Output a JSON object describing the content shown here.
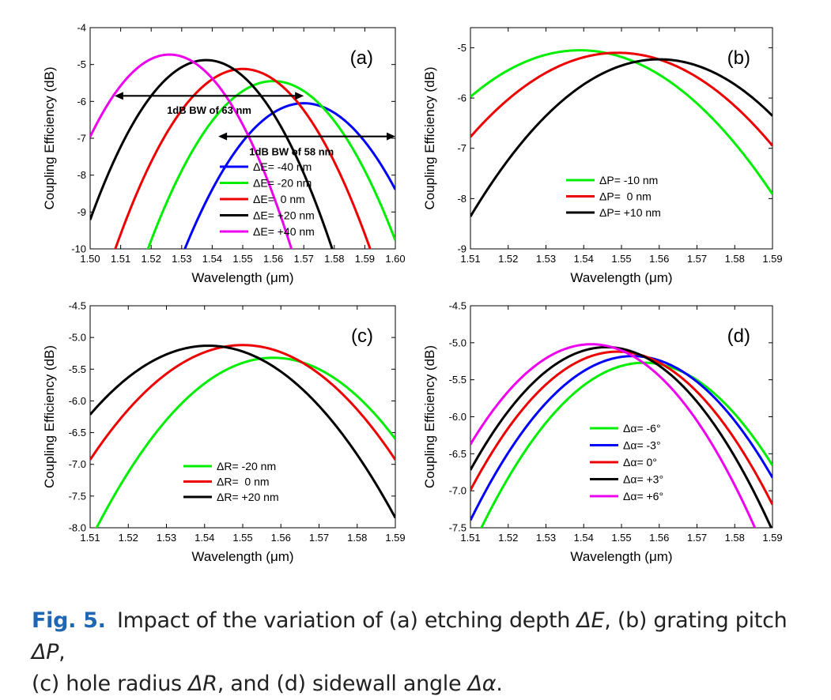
{
  "chart_data": [
    {
      "type": "line",
      "panel_label": "(a)",
      "xlabel": "Wavelength (μm)",
      "ylabel": "Coupling Efficiency (dB)",
      "xlim": [
        1.5,
        1.6
      ],
      "ylim": [
        -10,
        -4
      ],
      "xticks": [
        "1.50",
        "1.51",
        "1.52",
        "1.53",
        "1.54",
        "1.55",
        "1.56",
        "1.57",
        "1.58",
        "1.59",
        "1.60"
      ],
      "yticks": [
        "-10",
        "-9",
        "-8",
        "-7",
        "-6",
        "-5",
        "-4"
      ],
      "legend_position": "lower-right",
      "series": [
        {
          "name": "ΔE= -40 nm",
          "color": "#0000ff",
          "peak_x": 1.57,
          "peak_y": -6.05,
          "k": 2600
        },
        {
          "name": "ΔE= -20 nm",
          "color": "#00ee00",
          "peak_x": 1.56,
          "peak_y": -5.45,
          "k": 2700
        },
        {
          "name": "ΔE=  0 nm",
          "color": "#ee0000",
          "peak_x": 1.55,
          "peak_y": -5.12,
          "k": 2800
        },
        {
          "name": "ΔE= +20 nm",
          "color": "#000000",
          "peak_x": 1.538,
          "peak_y": -4.88,
          "k": 3000
        },
        {
          "name": "ΔE= +40 nm",
          "color": "#ee00ee",
          "peak_x": 1.526,
          "peak_y": -4.73,
          "k": 3300
        }
      ],
      "annotations": [
        {
          "text": "1dB BW of 63 nm",
          "x1": 1.508,
          "x2": 1.57,
          "y": -5.85,
          "text_x": 1.539,
          "text_y": -6.23
        },
        {
          "text": "1dB BW of 58 nm",
          "x1": 1.542,
          "x2": 1.6,
          "y": -6.95,
          "text_x": 1.566,
          "text_y": -7.35
        }
      ]
    },
    {
      "type": "line",
      "panel_label": "(b)",
      "xlabel": "Wavelength (μm)",
      "ylabel": "Coupling Efficiency (dB)",
      "xlim": [
        1.51,
        1.59
      ],
      "ylim": [
        -9,
        -4.6
      ],
      "xticks": [
        "1.51",
        "1.52",
        "1.53",
        "1.54",
        "1.55",
        "1.56",
        "1.57",
        "1.58",
        "1.59"
      ],
      "yticks": [
        "-9",
        "-8",
        "-7",
        "-6",
        "-5"
      ],
      "legend_position": "lower-center",
      "series": [
        {
          "name": "ΔP= -10 nm",
          "color": "#00ee00",
          "peak_x": 1.539,
          "peak_y": -5.05,
          "k": 1100
        },
        {
          "name": "ΔP=  0 nm",
          "color": "#ee0000",
          "peak_x": 1.549,
          "peak_y": -5.1,
          "k": 1100
        },
        {
          "name": "ΔP= +10 nm",
          "color": "#000000",
          "peak_x": 1.56,
          "peak_y": -5.23,
          "k": 1250
        }
      ]
    },
    {
      "type": "line",
      "panel_label": "(c)",
      "xlabel": "Wavelength (μm)",
      "ylabel": "Coupling Efficiency (dB)",
      "xlim": [
        1.51,
        1.59
      ],
      "ylim": [
        -8.0,
        -4.5
      ],
      "xticks": [
        "1.51",
        "1.52",
        "1.53",
        "1.54",
        "1.55",
        "1.56",
        "1.57",
        "1.58",
        "1.59"
      ],
      "yticks": [
        "-8.0",
        "-7.5",
        "-7.0",
        "-6.5",
        "-6.0",
        "-5.5",
        "-5.0",
        "-4.5"
      ],
      "legend_position": "lower-center",
      "series": [
        {
          "name": "ΔR= -20 nm",
          "color": "#00ee00",
          "peak_x": 1.558,
          "peak_y": -5.32,
          "k": 1250
        },
        {
          "name": "ΔR=  0 nm",
          "color": "#ee0000",
          "peak_x": 1.55,
          "peak_y": -5.12,
          "k": 1130
        },
        {
          "name": "ΔR= +20 nm",
          "color": "#000000",
          "peak_x": 1.541,
          "peak_y": -5.13,
          "k": 1130
        }
      ]
    },
    {
      "type": "line",
      "panel_label": "(d)",
      "xlabel": "Wavelength (μm)",
      "ylabel": "Coupling Efficiency (dB)",
      "xlim": [
        1.51,
        1.59
      ],
      "ylim": [
        -7.5,
        -4.5
      ],
      "xticks": [
        "1.51",
        "1.52",
        "1.53",
        "1.54",
        "1.55",
        "1.56",
        "1.57",
        "1.58",
        "1.59"
      ],
      "yticks": [
        "-7.5",
        "-7.0",
        "-6.5",
        "-6.0",
        "-5.5",
        "-5.0",
        "-4.5"
      ],
      "legend_position": "lower-right",
      "series": [
        {
          "name": "Δα= -6°",
          "color": "#00ee00",
          "peak_x": 1.556,
          "peak_y": -5.27,
          "k": 1200
        },
        {
          "name": "Δα= -3°",
          "color": "#0000ff",
          "peak_x": 1.553,
          "peak_y": -5.18,
          "k": 1200
        },
        {
          "name": "Δα= 0°",
          "color": "#ee0000",
          "peak_x": 1.549,
          "peak_y": -5.12,
          "k": 1230
        },
        {
          "name": "Δα= +3°",
          "color": "#000000",
          "peak_x": 1.546,
          "peak_y": -5.06,
          "k": 1280
        },
        {
          "name": "Δα= +6°",
          "color": "#ee00ee",
          "peak_x": 1.542,
          "peak_y": -5.02,
          "k": 1320
        }
      ]
    }
  ],
  "caption": {
    "label": "Fig. 5.",
    "part1": "Impact of the variation of (a) etching depth ",
    "sym_e": "ΔE",
    "part2": ", (b) grating pitch ",
    "sym_p": "ΔP",
    "part3": ",",
    "part4": "(c) hole radius ",
    "sym_r": "ΔR",
    "part5": ", and (d) sidewall angle ",
    "sym_a": "Δα",
    "part6": "."
  }
}
